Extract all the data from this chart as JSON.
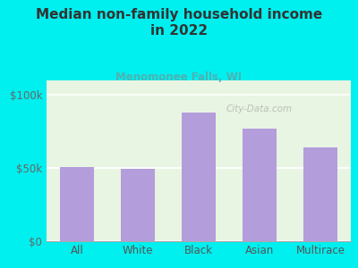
{
  "title_line1": "Median non-family household income",
  "title_line2": "in 2022",
  "subtitle": "Menomonee Falls, WI",
  "categories": [
    "All",
    "White",
    "Black",
    "Asian",
    "Multirace"
  ],
  "values": [
    51000,
    49500,
    88000,
    77000,
    64000
  ],
  "bar_color": "#b39ddb",
  "background_outer": "#00efef",
  "background_inner_top": "#e8f5e2",
  "background_inner_bottom": "#f5ffe8",
  "title_color": "#333333",
  "subtitle_color": "#4db3b3",
  "axis_label_color": "#555555",
  "tick_color": "#666666",
  "ylim": [
    0,
    110000
  ],
  "yticks": [
    0,
    50000,
    100000
  ],
  "ytick_labels": [
    "$0",
    "$50k",
    "$100k"
  ],
  "watermark": "City-Data.com",
  "figsize": [
    4.0,
    3.0
  ],
  "dpi": 100
}
